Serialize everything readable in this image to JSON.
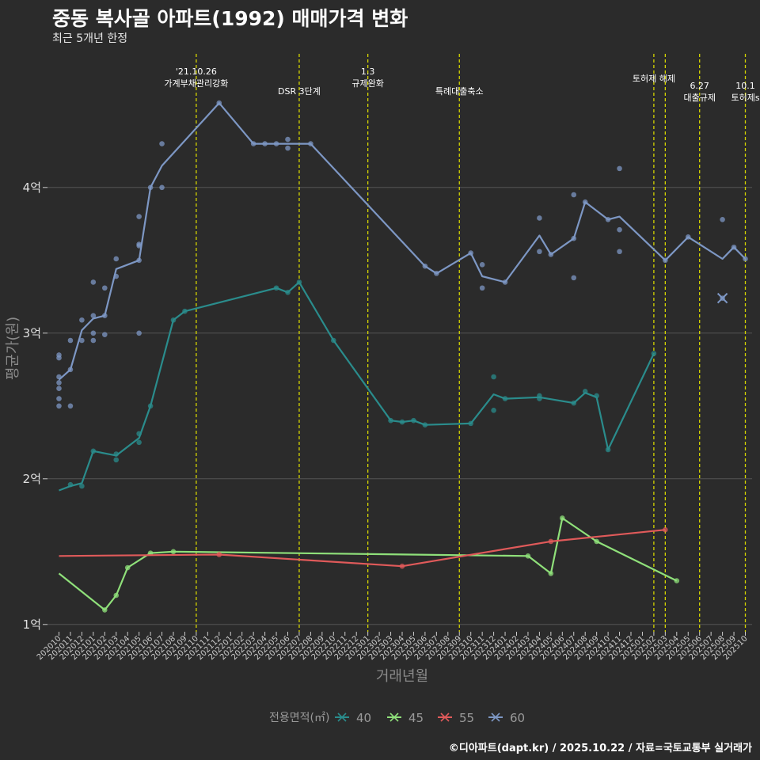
{
  "title": "중동 복사골 아파트(1992) 매매가격 변화",
  "subtitle": "최근 5개년 한정",
  "caption": "©디아파트(dapt.kr) / 2025.10.22 / 자료=국토교통부 실거래가",
  "colors": {
    "bg": "#2b2b2b",
    "grid": "#555555",
    "event": "#d4d400",
    "s40": "#2a8c8c",
    "s45": "#8fe07a",
    "s55": "#e05a5a",
    "s60": "#7d97c4"
  },
  "chart_data": {
    "type": "line",
    "xlabel": "거래년월",
    "ylabel": "평균가(원)",
    "ylim": [
      0.95,
      4.95
    ],
    "yticks": [
      {
        "v": 1,
        "label": "1억"
      },
      {
        "v": 2,
        "label": "2억"
      },
      {
        "v": 3,
        "label": "3억"
      },
      {
        "v": 4,
        "label": "4억"
      }
    ],
    "legend": {
      "title": "전용면적(㎡)",
      "position": "bottom"
    },
    "months": [
      "202010",
      "202011",
      "202012",
      "202101",
      "202102",
      "202103",
      "202104",
      "202105",
      "202106",
      "202107",
      "202108",
      "202109",
      "202110",
      "202111",
      "202112",
      "202201",
      "202202",
      "202203",
      "202204",
      "202205",
      "202206",
      "202207",
      "202208",
      "202209",
      "202210",
      "202211",
      "202212",
      "202301",
      "202302",
      "202303",
      "202304",
      "202305",
      "202306",
      "202307",
      "202308",
      "202309",
      "202310",
      "202311",
      "202312",
      "202401",
      "202402",
      "202403",
      "202404",
      "202405",
      "202406",
      "202407",
      "202408",
      "202409",
      "202410",
      "202411",
      "202412",
      "202501",
      "202502",
      "202503",
      "202504",
      "202505",
      "202506",
      "202507",
      "202508",
      "202509",
      "202510"
    ],
    "events": [
      {
        "m": 12.0,
        "lines": [
          "'21.10.26",
          "가계부채관리강화"
        ],
        "level": 0
      },
      {
        "m": 21.0,
        "lines": [
          "DSR 3단계"
        ],
        "level": 1
      },
      {
        "m": 27.0,
        "lines": [
          "1.3",
          "규제완화"
        ],
        "level": 0
      },
      {
        "m": 35.0,
        "lines": [
          "특례대출축소"
        ],
        "level": 1
      },
      {
        "m": 52.0,
        "lines": [
          "토허제 해제"
        ],
        "level": 0
      },
      {
        "m": 53.0,
        "lines": [],
        "level": 0
      },
      {
        "m": 56.0,
        "lines": [
          "6.27",
          "대출규제"
        ],
        "level": 2
      },
      {
        "m": 60.0,
        "lines": [
          "10.1",
          "토허제s"
        ],
        "level": 2
      }
    ],
    "series": [
      {
        "name": "40",
        "color": "#2a8c8c",
        "line": [
          [
            0,
            1.92
          ],
          [
            1,
            1.95
          ],
          [
            2,
            1.97
          ],
          [
            3,
            2.19
          ],
          [
            5,
            2.16
          ],
          [
            7,
            2.28
          ],
          [
            8,
            2.5
          ],
          [
            10,
            3.09
          ],
          [
            11,
            3.15
          ],
          [
            19,
            3.31
          ],
          [
            20,
            3.28
          ],
          [
            21,
            3.35
          ],
          [
            24,
            2.95
          ],
          [
            29,
            2.4
          ],
          [
            30,
            2.39
          ],
          [
            31,
            2.4
          ],
          [
            32,
            2.37
          ],
          [
            36,
            2.38
          ],
          [
            38,
            2.58
          ],
          [
            39,
            2.55
          ],
          [
            42,
            2.56
          ],
          [
            45,
            2.52
          ],
          [
            46,
            2.59
          ],
          [
            47,
            2.56
          ],
          [
            48,
            2.2
          ],
          [
            52,
            2.86
          ]
        ],
        "points": [
          [
            1,
            1.96
          ],
          [
            2,
            1.95
          ],
          [
            3,
            2.19
          ],
          [
            5,
            2.13
          ],
          [
            5,
            2.17
          ],
          [
            7,
            2.25
          ],
          [
            7,
            2.31
          ],
          [
            8,
            2.5
          ],
          [
            10,
            3.09
          ],
          [
            11,
            3.15
          ],
          [
            19,
            3.31
          ],
          [
            20,
            3.28
          ],
          [
            21,
            3.35
          ],
          [
            24,
            2.95
          ],
          [
            29,
            2.4
          ],
          [
            30,
            2.39
          ],
          [
            31,
            2.4
          ],
          [
            32,
            2.37
          ],
          [
            36,
            2.38
          ],
          [
            38,
            2.7
          ],
          [
            38,
            2.47
          ],
          [
            39,
            2.55
          ],
          [
            42,
            2.55
          ],
          [
            42,
            2.57
          ],
          [
            45,
            2.52
          ],
          [
            46,
            2.6
          ],
          [
            47,
            2.57
          ],
          [
            48,
            2.2
          ],
          [
            52,
            2.86
          ]
        ]
      },
      {
        "name": "45",
        "color": "#8fe07a",
        "line": [
          [
            0,
            1.35
          ],
          [
            4,
            1.1
          ],
          [
            5,
            1.2
          ],
          [
            6,
            1.39
          ],
          [
            8,
            1.49
          ],
          [
            10,
            1.5
          ],
          [
            41,
            1.47
          ],
          [
            43,
            1.35
          ],
          [
            44,
            1.73
          ],
          [
            47,
            1.57
          ],
          [
            54,
            1.3
          ]
        ],
        "points": [
          [
            4,
            1.1
          ],
          [
            5,
            1.2
          ],
          [
            6,
            1.39
          ],
          [
            8,
            1.49
          ],
          [
            10,
            1.5
          ],
          [
            41,
            1.47
          ],
          [
            43,
            1.35
          ],
          [
            44,
            1.73
          ],
          [
            47,
            1.57
          ],
          [
            54,
            1.3
          ]
        ]
      },
      {
        "name": "55",
        "color": "#e05a5a",
        "line": [
          [
            0,
            1.47
          ],
          [
            14,
            1.48
          ],
          [
            30,
            1.4
          ],
          [
            43,
            1.57
          ],
          [
            53,
            1.65
          ]
        ],
        "points": [
          [
            14,
            1.48
          ],
          [
            30,
            1.4
          ],
          [
            43,
            1.57
          ],
          [
            53,
            1.65
          ]
        ]
      },
      {
        "name": "60",
        "color": "#7d97c4",
        "line": [
          [
            0,
            2.68
          ],
          [
            1,
            2.75
          ],
          [
            2,
            3.02
          ],
          [
            3,
            3.1
          ],
          [
            4,
            3.12
          ],
          [
            5,
            3.44
          ],
          [
            7,
            3.5
          ],
          [
            8,
            4.0
          ],
          [
            9,
            4.15
          ],
          [
            14,
            4.58
          ],
          [
            17,
            4.3
          ],
          [
            22,
            4.3
          ],
          [
            32,
            3.46
          ],
          [
            33,
            3.41
          ],
          [
            36,
            3.55
          ],
          [
            37,
            3.39
          ],
          [
            39,
            3.35
          ],
          [
            42,
            3.67
          ],
          [
            43,
            3.54
          ],
          [
            45,
            3.65
          ],
          [
            46,
            3.9
          ],
          [
            48,
            3.78
          ],
          [
            49,
            3.8
          ],
          [
            53,
            3.5
          ],
          [
            55,
            3.66
          ],
          [
            58,
            3.51
          ],
          [
            59,
            3.59
          ],
          [
            60,
            3.51
          ]
        ],
        "points": [
          [
            0,
            2.5
          ],
          [
            0,
            2.55
          ],
          [
            0,
            2.62
          ],
          [
            0,
            2.66
          ],
          [
            0,
            2.7
          ],
          [
            0,
            2.83
          ],
          [
            0,
            2.85
          ],
          [
            1,
            2.5
          ],
          [
            1,
            2.75
          ],
          [
            1,
            2.95
          ],
          [
            2,
            2.95
          ],
          [
            2,
            3.09
          ],
          [
            3,
            2.95
          ],
          [
            3,
            3.0
          ],
          [
            3,
            3.12
          ],
          [
            3,
            3.35
          ],
          [
            4,
            2.99
          ],
          [
            4,
            3.12
          ],
          [
            4,
            3.31
          ],
          [
            5,
            3.39
          ],
          [
            5,
            3.51
          ],
          [
            7,
            3.0
          ],
          [
            7,
            3.5
          ],
          [
            7,
            3.6
          ],
          [
            7,
            3.61
          ],
          [
            7,
            3.8
          ],
          [
            8,
            4.0
          ],
          [
            9,
            4.0
          ],
          [
            9,
            4.3
          ],
          [
            14,
            4.58
          ],
          [
            17,
            4.3
          ],
          [
            18,
            4.3
          ],
          [
            19,
            4.3
          ],
          [
            20,
            4.27
          ],
          [
            20,
            4.33
          ],
          [
            22,
            4.3
          ],
          [
            32,
            3.46
          ],
          [
            33,
            3.41
          ],
          [
            36,
            3.55
          ],
          [
            37,
            3.47
          ],
          [
            37,
            3.31
          ],
          [
            39,
            3.35
          ],
          [
            42,
            3.79
          ],
          [
            42,
            3.56
          ],
          [
            43,
            3.54
          ],
          [
            45,
            3.95
          ],
          [
            45,
            3.65
          ],
          [
            45,
            3.38
          ],
          [
            46,
            3.9
          ],
          [
            48,
            3.78
          ],
          [
            49,
            3.71
          ],
          [
            49,
            3.56
          ],
          [
            49,
            4.13
          ],
          [
            53,
            3.5
          ],
          [
            55,
            3.66
          ],
          [
            58,
            3.78
          ],
          [
            58,
            3.24
          ],
          [
            59,
            3.59
          ],
          [
            60,
            3.51
          ]
        ],
        "cross": [
          [
            58,
            3.24
          ]
        ]
      }
    ]
  }
}
